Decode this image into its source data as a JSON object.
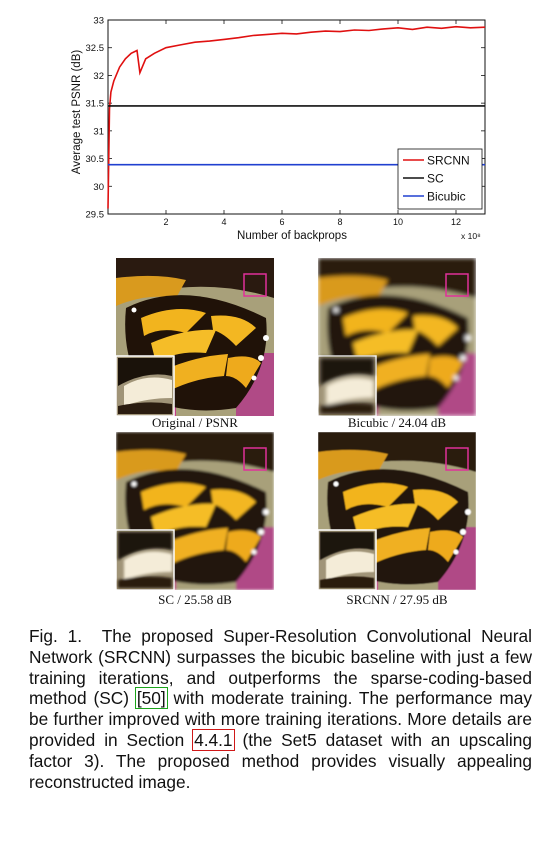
{
  "chart_data": {
    "type": "line",
    "xlabel": "Number of backprops",
    "ylabel": "Average test PSNR (dB)",
    "x_exponent": "x 10⁸",
    "xlim": [
      0,
      13
    ],
    "ylim": [
      29.5,
      33
    ],
    "xticks": [
      "2",
      "4",
      "6",
      "8",
      "10",
      "12"
    ],
    "yticks": [
      "29.5",
      "30",
      "30.5",
      "31",
      "31.5",
      "32",
      "32.5",
      "33"
    ],
    "legend_position": "lower-right",
    "series": [
      {
        "name": "SRCNN",
        "color": "#e01010",
        "x": [
          0,
          0.05,
          0.1,
          0.2,
          0.4,
          0.6,
          0.8,
          1.0,
          1.1,
          1.3,
          1.6,
          2.0,
          2.5,
          3.0,
          3.5,
          4.0,
          4.5,
          5.0,
          5.5,
          6.0,
          6.5,
          7.0,
          7.5,
          8.0,
          8.5,
          9.0,
          9.5,
          10.0,
          10.5,
          11.0,
          11.5,
          12.0,
          12.5,
          13.0
        ],
        "y": [
          29.6,
          31.4,
          31.7,
          31.9,
          32.15,
          32.3,
          32.4,
          32.45,
          32.05,
          32.3,
          32.4,
          32.5,
          32.55,
          32.6,
          32.62,
          32.65,
          32.68,
          32.72,
          32.74,
          32.76,
          32.75,
          32.78,
          32.8,
          32.79,
          32.82,
          32.81,
          32.84,
          32.86,
          32.83,
          32.87,
          32.85,
          32.88,
          32.86,
          32.87
        ]
      },
      {
        "name": "SC",
        "color": "#111111",
        "x": [
          0,
          13
        ],
        "y": [
          31.45,
          31.45
        ]
      },
      {
        "name": "Bicubic",
        "color": "#2040d0",
        "x": [
          0,
          13
        ],
        "y": [
          30.39,
          30.39
        ]
      }
    ]
  },
  "figure": {
    "panels": [
      {
        "label": "Original / PSNR"
      },
      {
        "label": "Bicubic / 24.04 dB"
      },
      {
        "label": "SC / 25.58 dB"
      },
      {
        "label": "SRCNN / 27.95 dB"
      }
    ]
  },
  "caption": {
    "fig_label": "Fig. 1.",
    "text_1": "The proposed Super-Resolution Convolutional Neural Network (SRCNN) surpasses the bicubic baseline with just a few training iterations, and outperforms the sparse-coding-based method (SC) ",
    "ref_1": "[50]",
    "text_2": " with moderate training. The performance may be further improved with more training iterations. More details are provided in Section ",
    "ref_2": "4.4.1",
    "text_3": " (the Set5 dataset with an upscaling factor 3). The proposed method provides visually appealing reconstructed image."
  }
}
